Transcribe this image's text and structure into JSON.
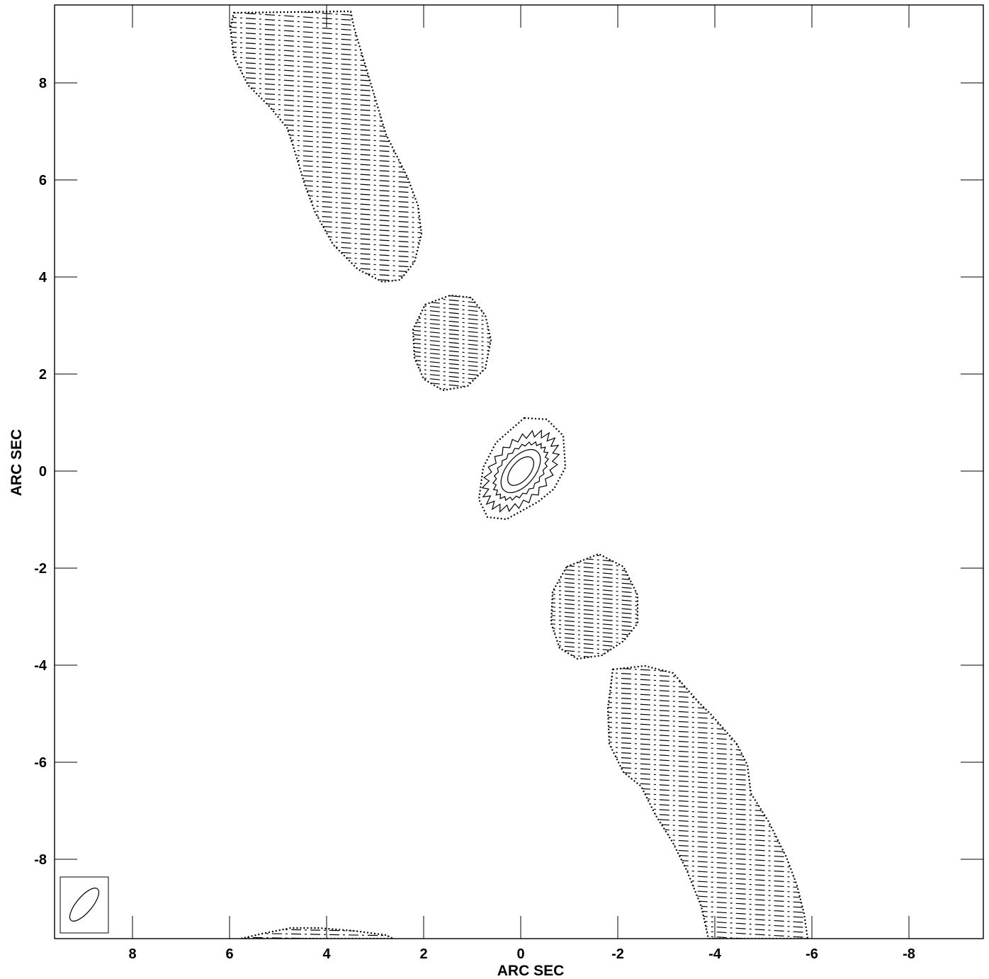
{
  "chart_data": {
    "type": "contour",
    "title": "",
    "xlabel": "ARC SEC",
    "ylabel": "ARC SEC",
    "xlim": [
      9.6,
      -9.6
    ],
    "ylim": [
      -9.6,
      9.6
    ],
    "x_ticks": [
      8,
      6,
      4,
      2,
      0,
      -2,
      -4,
      -6,
      -8
    ],
    "x_tick_labels": [
      "8",
      "6",
      "4",
      "2",
      "0",
      "-2",
      "-4",
      "-6",
      "-8"
    ],
    "y_ticks": [
      8,
      6,
      4,
      2,
      0,
      -2,
      -4,
      -6,
      -8
    ],
    "y_tick_labels": [
      "8",
      "6",
      "4",
      "2",
      "0",
      "-2",
      "-4",
      "-6",
      "-8"
    ],
    "grid": false,
    "beam": {
      "position": "bottom-left",
      "major_arcsec": 0.8,
      "minor_arcsec": 0.4,
      "pa_deg": 40
    },
    "components": [
      {
        "name": "core",
        "x": 0.0,
        "y": 0.0,
        "levels": 4,
        "dashed_outer": true
      },
      {
        "name": "knot-nw",
        "x": 2.0,
        "y": 2.6,
        "levels": 1
      },
      {
        "name": "jet-nw",
        "path": [
          [
            5.6,
            9.5
          ],
          [
            5.2,
            8.5
          ],
          [
            4.3,
            7.2
          ],
          [
            3.9,
            6.2
          ],
          [
            3.3,
            5.2
          ],
          [
            2.9,
            4.2
          ]
        ],
        "levels": 1
      },
      {
        "name": "knot-se",
        "x": -1.6,
        "y": -2.9,
        "levels": 1
      },
      {
        "name": "jet-se",
        "path": [
          [
            -2.8,
            -4.4
          ],
          [
            -3.2,
            -5.4
          ],
          [
            -3.6,
            -6.3
          ],
          [
            -4.2,
            -7.2
          ],
          [
            -4.6,
            -8.0
          ],
          [
            -5.0,
            -8.9
          ],
          [
            -5.2,
            -9.5
          ]
        ],
        "levels": 1
      },
      {
        "name": "edge-s",
        "x": 4.2,
        "y": -9.6,
        "levels": 1
      }
    ]
  }
}
